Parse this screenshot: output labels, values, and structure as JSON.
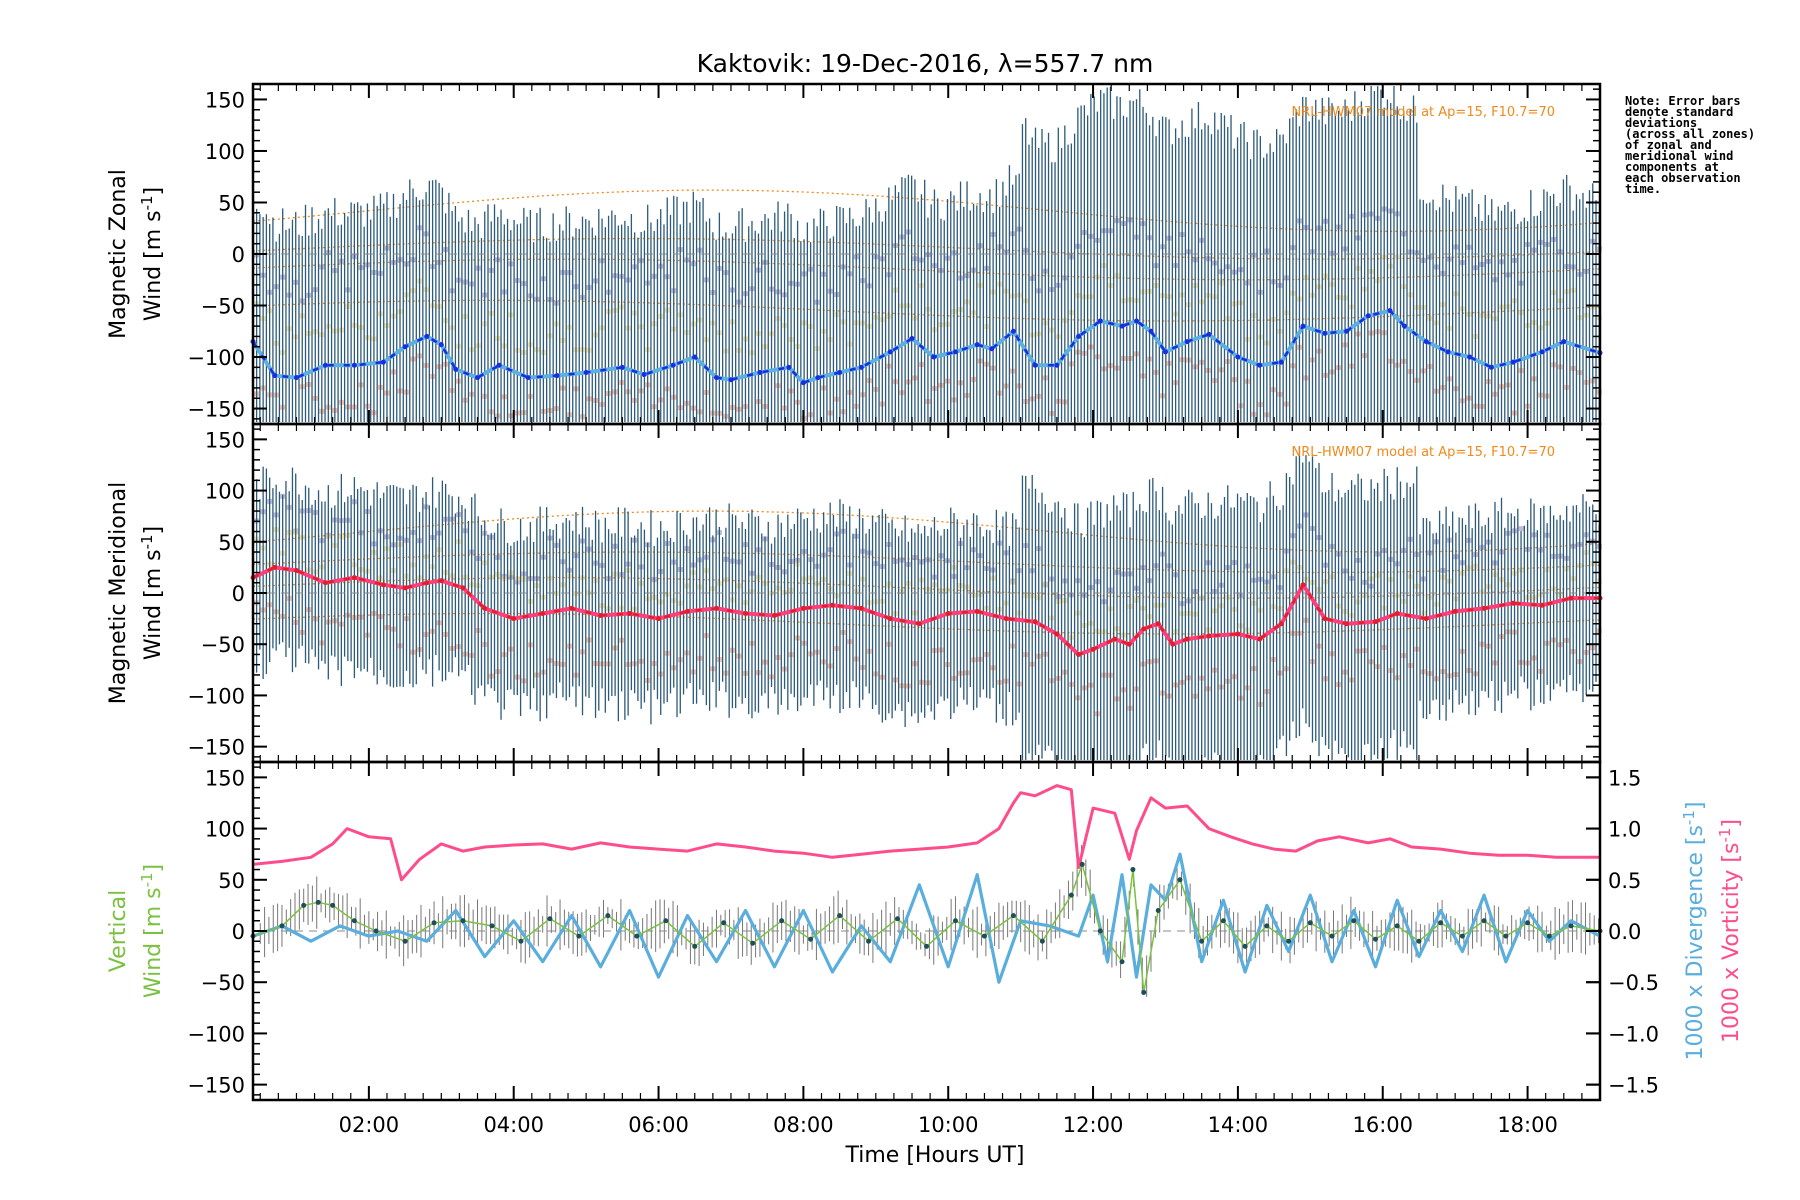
{
  "chart_data": {
    "type": "line",
    "title": "Kaktovik: 19-Dec-2016, λ=557.7 nm",
    "xlabel": "Time [Hours UT]",
    "xlim": [
      0.4,
      19.0
    ],
    "xticks": [
      "02:00",
      "04:00",
      "06:00",
      "08:00",
      "10:00",
      "12:00",
      "14:00",
      "16:00",
      "18:00"
    ],
    "xtick_hours": [
      2,
      4,
      6,
      8,
      10,
      12,
      14,
      16,
      18
    ],
    "note": [
      "Note: Error bars",
      "denote standard",
      "deviations",
      "(across all zones)",
      "of zonal and",
      "meridional wind",
      "components at",
      "each observation",
      "time."
    ],
    "colors": {
      "zonal_line": "#5bb0e0",
      "zonal_highlight": "#1a2ee0",
      "meridional_line": "#ff3f7a",
      "meridional_highlight": "#e0202a",
      "error_bar": "#2c5a7a",
      "vertical": "#7ac142",
      "divergence": "#5aaede",
      "vorticity": "#ff4c8b",
      "model": "#f08a1c",
      "point_purple": "#a89cc8",
      "point_yellow": "#f2d88c",
      "point_salmon": "#f5a483"
    },
    "panels": [
      {
        "id": "zonal",
        "ylabel": [
          "Magnetic Zonal",
          "Wind [m s",
          "-1",
          "]"
        ],
        "ylim": [
          -165,
          165
        ],
        "yticks": [
          -150,
          -100,
          -50,
          0,
          50,
          100,
          150
        ],
        "model_label": "NRL-HWM07 model at Ap=15, F10.7=70",
        "series": [
          {
            "x": [
              0.4,
              0.7,
              1.0,
              1.4,
              1.8,
              2.2,
              2.5,
              2.8,
              3.0,
              3.2,
              3.5,
              3.8,
              4.2,
              4.6,
              5.0,
              5.5,
              5.8,
              6.2,
              6.5,
              6.8,
              7.0,
              7.4,
              7.8,
              8.0,
              8.2,
              8.5,
              8.8,
              9.2,
              9.5,
              9.8,
              10.1,
              10.4,
              10.6,
              10.9,
              11.2,
              11.5,
              11.8,
              12.1,
              12.4,
              12.6,
              12.8,
              13.0,
              13.3,
              13.6,
              14.0,
              14.3,
              14.6,
              14.9,
              15.2,
              15.5,
              15.8,
              16.1,
              16.3,
              16.6,
              16.9,
              17.2,
              17.5,
              17.8,
              18.2,
              18.5,
              19.0
            ],
            "y": [
              -85,
              -118,
              -120,
              -108,
              -108,
              -105,
              -90,
              -80,
              -88,
              -112,
              -120,
              -108,
              -120,
              -118,
              -115,
              -110,
              -117,
              -108,
              -100,
              -120,
              -122,
              -115,
              -110,
              -125,
              -120,
              -115,
              -110,
              -95,
              -82,
              -100,
              -95,
              -88,
              -92,
              -75,
              -108,
              -108,
              -80,
              -65,
              -70,
              -65,
              -75,
              -95,
              -85,
              -78,
              -100,
              -108,
              -105,
              -70,
              -77,
              -75,
              -60,
              -55,
              -70,
              -85,
              -95,
              -100,
              -110,
              -105,
              -95,
              -85,
              -96
            ]
          }
        ]
      },
      {
        "id": "meridional",
        "ylabel": [
          "Magnetic Meridional",
          "Wind [m s",
          "-1",
          "]"
        ],
        "ylim": [
          -165,
          165
        ],
        "yticks": [
          -150,
          -100,
          -50,
          0,
          50,
          100,
          150
        ],
        "model_label": "NRL-HWM07 model at Ap=15, F10.7=70",
        "series": [
          {
            "x": [
              0.4,
              0.7,
              1.0,
              1.4,
              1.8,
              2.2,
              2.5,
              2.8,
              3.0,
              3.3,
              3.6,
              4.0,
              4.4,
              4.8,
              5.2,
              5.6,
              6.0,
              6.4,
              6.8,
              7.2,
              7.6,
              8.0,
              8.4,
              8.8,
              9.2,
              9.6,
              10.0,
              10.4,
              10.8,
              11.2,
              11.5,
              11.8,
              12.0,
              12.3,
              12.5,
              12.7,
              12.9,
              13.1,
              13.3,
              13.6,
              14.0,
              14.3,
              14.6,
              14.9,
              15.2,
              15.5,
              15.9,
              16.2,
              16.6,
              17.0,
              17.4,
              17.8,
              18.2,
              18.6,
              19.0
            ],
            "y": [
              15,
              25,
              22,
              10,
              15,
              8,
              5,
              10,
              12,
              5,
              -15,
              -25,
              -20,
              -15,
              -22,
              -20,
              -25,
              -18,
              -15,
              -20,
              -22,
              -15,
              -12,
              -15,
              -25,
              -30,
              -20,
              -18,
              -25,
              -28,
              -40,
              -60,
              -55,
              -45,
              -50,
              -35,
              -30,
              -50,
              -45,
              -42,
              -40,
              -45,
              -30,
              8,
              -25,
              -30,
              -28,
              -20,
              -25,
              -18,
              -15,
              -10,
              -12,
              -5,
              -5
            ]
          }
        ]
      },
      {
        "id": "vertical",
        "ylabel": [
          "Vertical",
          "Wind [m s",
          "-1",
          "]"
        ],
        "ylim": [
          -165,
          165
        ],
        "yticks": [
          -150,
          -100,
          -50,
          0,
          50,
          100,
          150
        ],
        "y2lim": [
          -1.65,
          1.65
        ],
        "y2ticks": [
          "-1.5",
          "-1.0",
          "-0.5",
          "0.0",
          "0.5",
          "1.0",
          "1.5"
        ],
        "y2_values": [
          -1.5,
          -1.0,
          -0.5,
          0.0,
          0.5,
          1.0,
          1.5
        ],
        "y2label_div": [
          "1000 x Divergence [s",
          "-1",
          "]"
        ],
        "y2label_vort": [
          "1000 x Vorticity [s",
          "-1",
          "]"
        ],
        "series": [
          {
            "name": "Vorticity",
            "axis": "right",
            "x": [
              0.4,
              0.8,
              1.2,
              1.5,
              1.7,
              2.0,
              2.3,
              2.45,
              2.7,
              3.0,
              3.3,
              3.6,
              4.0,
              4.4,
              4.8,
              5.2,
              5.6,
              6.0,
              6.4,
              6.8,
              7.2,
              7.6,
              8.0,
              8.4,
              8.8,
              9.2,
              9.6,
              10.0,
              10.4,
              10.7,
              10.9,
              11.0,
              11.2,
              11.5,
              11.7,
              11.8,
              12.0,
              12.3,
              12.5,
              12.6,
              12.8,
              13.0,
              13.3,
              13.6,
              13.9,
              14.2,
              14.5,
              14.8,
              15.1,
              15.4,
              15.8,
              16.1,
              16.4,
              16.8,
              17.2,
              17.6,
              18.0,
              18.4,
              19.0
            ],
            "y": [
              0.65,
              0.68,
              0.72,
              0.85,
              1.0,
              0.92,
              0.9,
              0.5,
              0.7,
              0.85,
              0.78,
              0.82,
              0.84,
              0.85,
              0.8,
              0.86,
              0.82,
              0.8,
              0.78,
              0.85,
              0.82,
              0.78,
              0.76,
              0.72,
              0.75,
              0.78,
              0.8,
              0.82,
              0.86,
              1.0,
              1.25,
              1.35,
              1.32,
              1.42,
              1.38,
              0.62,
              1.2,
              1.15,
              0.7,
              0.98,
              1.3,
              1.2,
              1.22,
              1.0,
              0.92,
              0.85,
              0.8,
              0.78,
              0.88,
              0.92,
              0.86,
              0.9,
              0.82,
              0.8,
              0.76,
              0.74,
              0.74,
              0.72,
              0.72
            ]
          },
          {
            "name": "Divergence",
            "axis": "right",
            "x": [
              0.4,
              0.8,
              1.2,
              1.6,
              2.0,
              2.4,
              2.8,
              3.2,
              3.6,
              4.0,
              4.4,
              4.8,
              5.2,
              5.6,
              6.0,
              6.4,
              6.8,
              7.2,
              7.6,
              8.0,
              8.4,
              8.8,
              9.2,
              9.6,
              10.0,
              10.4,
              10.7,
              11.0,
              11.4,
              11.8,
              12.0,
              12.2,
              12.4,
              12.6,
              12.8,
              13.0,
              13.2,
              13.5,
              13.8,
              14.1,
              14.4,
              14.7,
              15.0,
              15.3,
              15.6,
              15.9,
              16.2,
              16.5,
              16.8,
              17.1,
              17.4,
              17.7,
              18.0,
              18.3,
              18.6,
              19.0
            ],
            "y": [
              -0.05,
              0.05,
              -0.1,
              0.05,
              -0.05,
              0.0,
              -0.1,
              0.2,
              -0.25,
              0.1,
              -0.3,
              0.15,
              -0.35,
              0.2,
              -0.45,
              0.15,
              -0.3,
              0.2,
              -0.35,
              0.2,
              -0.4,
              0.05,
              -0.3,
              0.45,
              -0.35,
              0.55,
              -0.5,
              0.1,
              0.05,
              -0.05,
              0.35,
              -0.3,
              0.55,
              -0.45,
              0.45,
              0.3,
              0.75,
              -0.3,
              0.3,
              -0.4,
              0.25,
              -0.2,
              0.35,
              -0.3,
              0.2,
              -0.35,
              0.3,
              -0.25,
              0.2,
              -0.2,
              0.35,
              -0.3,
              0.2,
              -0.1,
              0.1,
              -0.05
            ]
          },
          {
            "name": "Vertical Wind",
            "axis": "left",
            "x": [
              0.4,
              0.8,
              1.1,
              1.3,
              1.5,
              1.8,
              2.1,
              2.5,
              2.9,
              3.3,
              3.7,
              4.1,
              4.5,
              4.9,
              5.3,
              5.7,
              6.1,
              6.5,
              6.9,
              7.3,
              7.7,
              8.1,
              8.5,
              8.9,
              9.3,
              9.7,
              10.1,
              10.5,
              10.9,
              11.3,
              11.7,
              11.85,
              12.1,
              12.4,
              12.55,
              12.7,
              12.9,
              13.2,
              13.5,
              13.8,
              14.1,
              14.4,
              14.7,
              15.0,
              15.3,
              15.6,
              15.9,
              16.2,
              16.5,
              16.8,
              17.1,
              17.4,
              17.7,
              18.0,
              18.3,
              18.6,
              19.0
            ],
            "y": [
              -5,
              5,
              25,
              28,
              25,
              10,
              0,
              -10,
              8,
              10,
              5,
              -10,
              12,
              -5,
              15,
              -5,
              10,
              -15,
              8,
              -12,
              10,
              -8,
              15,
              -10,
              12,
              -15,
              10,
              -5,
              15,
              -10,
              35,
              65,
              0,
              -30,
              60,
              -60,
              20,
              50,
              -10,
              10,
              -15,
              5,
              -10,
              8,
              -5,
              10,
              -8,
              5,
              -10,
              8,
              -5,
              10,
              -5,
              8,
              -5,
              5,
              0
            ]
          }
        ]
      }
    ]
  }
}
